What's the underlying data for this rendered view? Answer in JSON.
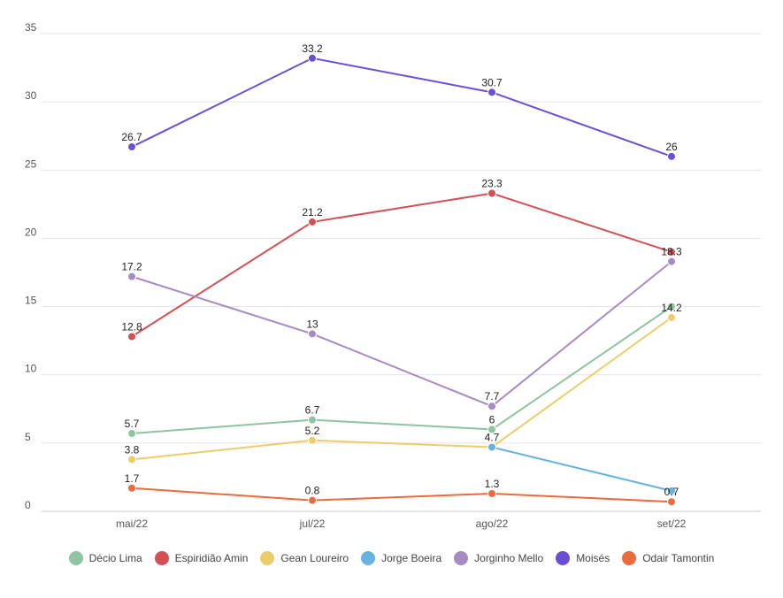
{
  "chart_data": {
    "type": "line",
    "categories": [
      "mai/22",
      "jul/22",
      "ago/22",
      "set/22"
    ],
    "ylim": [
      0,
      35
    ],
    "yticks": [
      0,
      5,
      10,
      15,
      20,
      25,
      30,
      35
    ],
    "grid": true,
    "legend_position": "bottom",
    "series": [
      {
        "name": "Décio Lima",
        "color": "#8fc3a1",
        "values": [
          5.7,
          6.7,
          6,
          15
        ],
        "labels": [
          "5.7",
          "6.7",
          "6",
          ""
        ]
      },
      {
        "name": "Espiridião Amin",
        "color": "#d35155",
        "values": [
          12.8,
          21.2,
          23.3,
          19
        ],
        "labels": [
          "12.8",
          "21.2",
          "23.3",
          ""
        ]
      },
      {
        "name": "Gean Loureiro",
        "color": "#edcd6b",
        "values": [
          3.8,
          5.2,
          4.7,
          14.2
        ],
        "labels": [
          "3.8",
          "5.2",
          "",
          "14.2"
        ]
      },
      {
        "name": "Jorge Boeira",
        "color": "#66b3e0",
        "values": [
          null,
          null,
          4.7,
          1.5
        ],
        "labels": [
          "",
          "",
          "4.7",
          ""
        ]
      },
      {
        "name": "Jorginho Mello",
        "color": "#a88bc4",
        "values": [
          17.2,
          13,
          7.7,
          18.3
        ],
        "labels": [
          "17.2",
          "13",
          "7.7",
          "18.3"
        ]
      },
      {
        "name": "Moisés",
        "color": "#6a4fd6",
        "values": [
          26.7,
          33.2,
          30.7,
          26
        ],
        "labels": [
          "26.7",
          "33.2",
          "30.7",
          "26"
        ]
      },
      {
        "name": "Odair Tamontin",
        "color": "#ec6a3c",
        "values": [
          1.7,
          0.8,
          1.3,
          0.7
        ],
        "labels": [
          "1.7",
          "0.8",
          "1.3",
          "0.7"
        ]
      }
    ]
  }
}
